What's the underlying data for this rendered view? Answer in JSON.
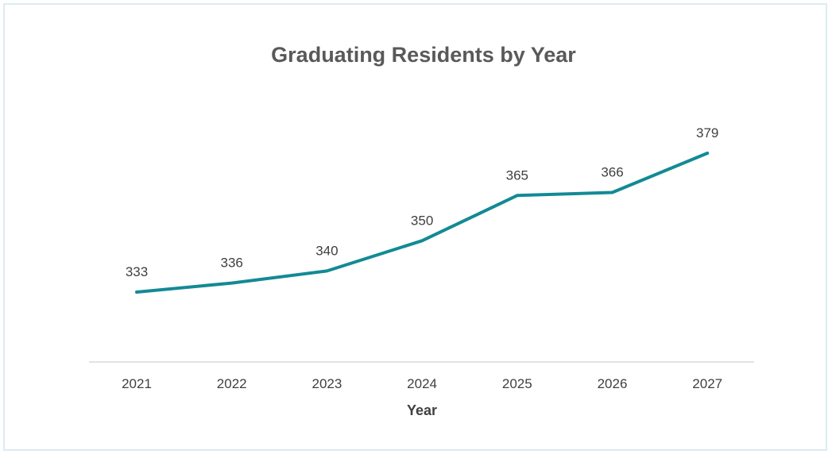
{
  "chart_data": {
    "type": "line",
    "title": "Graduating Residents by Year",
    "xlabel": "Year",
    "ylabel": "",
    "categories": [
      "2021",
      "2022",
      "2023",
      "2024",
      "2025",
      "2026",
      "2027"
    ],
    "series": [
      {
        "values": [
          333,
          336,
          340,
          350,
          365,
          366,
          379
        ]
      }
    ],
    "data_labels": [
      "333",
      "336",
      "340",
      "350",
      "365",
      "366",
      "379"
    ],
    "ylim": [
      280,
      390
    ],
    "grid": false,
    "legend": "none",
    "colors": {
      "line": "#138a94",
      "axis": "#d9d9d9",
      "frame": "#dcebf1"
    }
  }
}
